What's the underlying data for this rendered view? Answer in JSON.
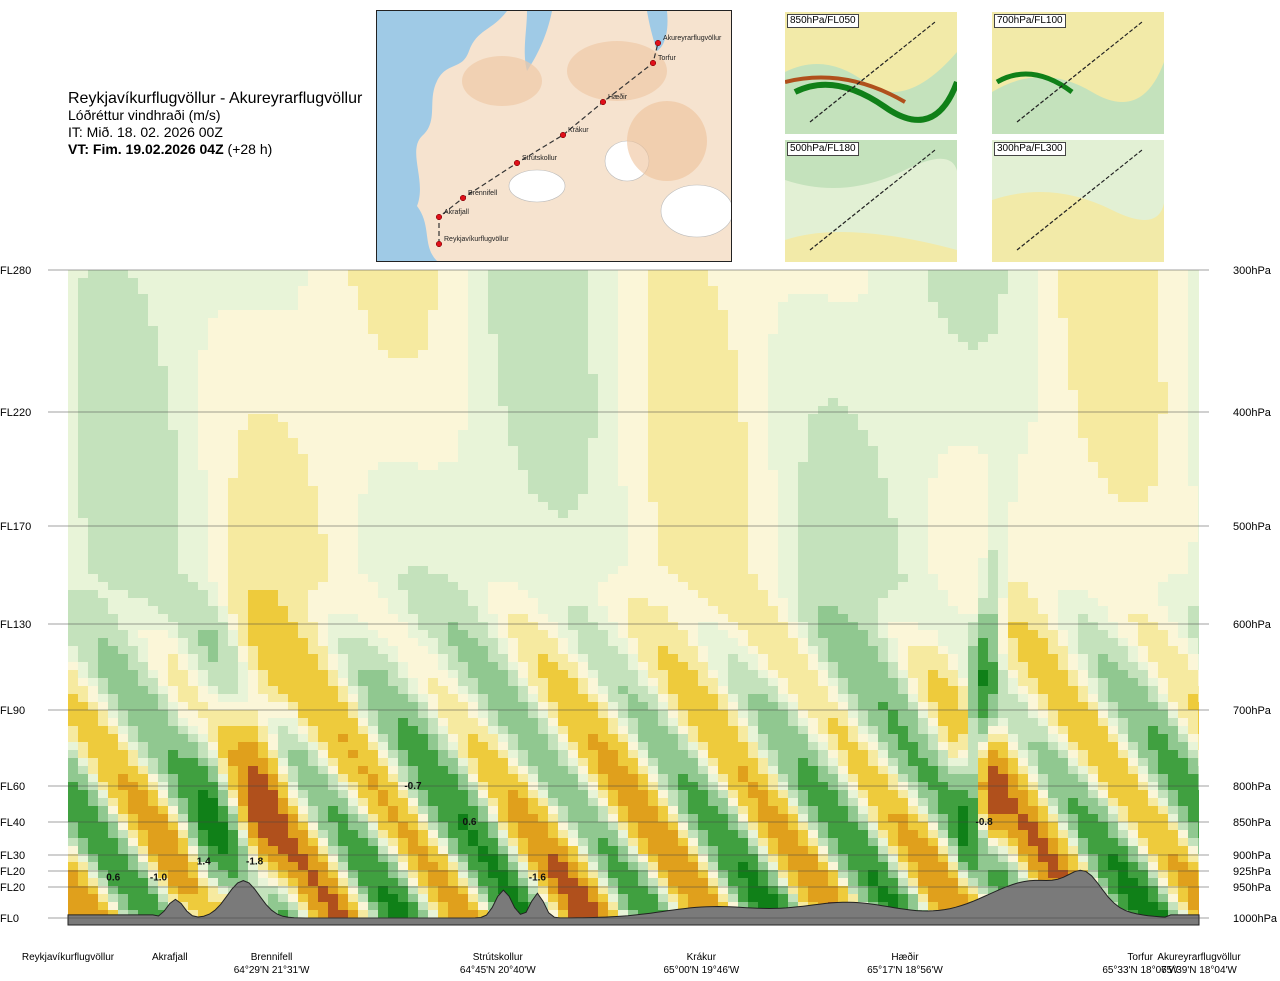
{
  "header": {
    "route": "Reykjavíkurflugvöllur - Akureyrarflugvöllur",
    "product": "Lóðréttur vindhraði (m/s)",
    "issue_time": "IT: Mið. 18. 02. 2026 00Z",
    "valid_prefix": "VT: Fim. 19.02.2026 04Z",
    "valid_suffix": " (+28 h)"
  },
  "map": {
    "waypoints": [
      {
        "name": "Akureyrarflugvöllur"
      },
      {
        "name": "Torfur"
      },
      {
        "name": "Hæðir"
      },
      {
        "name": "Krákur"
      },
      {
        "name": "Strútskollur"
      },
      {
        "name": "Brennifell"
      },
      {
        "name": "Akrafjall"
      },
      {
        "name": "Reykjavíkurflugvöllur"
      }
    ]
  },
  "insets": [
    {
      "label": "850hPa/FL050"
    },
    {
      "label": "700hPa/FL100"
    },
    {
      "label": "500hPa/FL180"
    },
    {
      "label": "300hPa/FL300"
    }
  ],
  "chart_data": {
    "type": "heatmap",
    "title": "Lóðréttur vindhraði (m/s)",
    "levels": [
      {
        "fl": "FL280",
        "hpa": "300hPa",
        "pressure": 300
      },
      {
        "fl": "FL220",
        "hpa": "400hPa",
        "pressure": 400
      },
      {
        "fl": "FL170",
        "hpa": "500hPa",
        "pressure": 500
      },
      {
        "fl": "FL130",
        "hpa": "600hPa",
        "pressure": 600
      },
      {
        "fl": "FL90",
        "hpa": "700hPa",
        "pressure": 700
      },
      {
        "fl": "FL60",
        "hpa": "800hPa",
        "pressure": 800
      },
      {
        "fl": "FL40",
        "hpa": "850hPa",
        "pressure": 850
      },
      {
        "fl": "FL30",
        "hpa": "900hPa",
        "pressure": 900
      },
      {
        "fl": "FL20",
        "hpa": "925hPa",
        "pressure": 925
      },
      {
        "fl": "FL20",
        "hpa": "950hPa",
        "pressure": 950
      },
      {
        "fl": "FL0",
        "hpa": "1000hPa",
        "pressure": 1000
      }
    ],
    "stations": [
      {
        "name": "Reykjavíkurflugvöllur",
        "coord": "",
        "dist": 0.0
      },
      {
        "name": "Akrafjall",
        "coord": "",
        "dist": 0.09
      },
      {
        "name": "Brennifell",
        "coord": "64°29'N 21°31'W",
        "dist": 0.18
      },
      {
        "name": "Strútskollur",
        "coord": "64°45'N 20°40'W",
        "dist": 0.38
      },
      {
        "name": "Krákur",
        "coord": "65°00'N 19°46'W",
        "dist": 0.56
      },
      {
        "name": "Hæðir",
        "coord": "65°17'N 18°56'W",
        "dist": 0.74
      },
      {
        "name": "Torfur",
        "coord": "65°33'N 18°07'W",
        "dist": 0.948
      },
      {
        "name": "Akureyrarflugvöllur",
        "coord": "65°39'N 18°04'W",
        "dist": 1.0
      }
    ],
    "value_labels": [
      {
        "text": "0.6",
        "dist": 0.04,
        "pressure": 935
      },
      {
        "text": "-1.0",
        "dist": 0.08,
        "pressure": 935
      },
      {
        "text": "1.4",
        "dist": 0.12,
        "pressure": 910
      },
      {
        "text": "-1.8",
        "dist": 0.165,
        "pressure": 910
      },
      {
        "text": "-0.7",
        "dist": 0.305,
        "pressure": 800
      },
      {
        "text": "0.6",
        "dist": 0.355,
        "pressure": 850
      },
      {
        "text": "-1.6",
        "dist": 0.415,
        "pressure": 935
      },
      {
        "text": "-0.8",
        "dist": 0.81,
        "pressure": 850
      }
    ],
    "w_classes": [
      {
        "min": -99,
        "max": -1.2,
        "color": "#7a1c0c"
      },
      {
        "min": -1.2,
        "max": -0.8,
        "color": "#b0501c"
      },
      {
        "min": -0.8,
        "max": -0.5,
        "color": "#e0a01c"
      },
      {
        "min": -0.5,
        "max": -0.25,
        "color": "#eecb3c"
      },
      {
        "min": -0.25,
        "max": -0.1,
        "color": "#f6eaa0"
      },
      {
        "min": -0.1,
        "max": 0.0,
        "color": "#fbf6d8"
      },
      {
        "min": 0.0,
        "max": 0.1,
        "color": "#e8f4d8"
      },
      {
        "min": 0.1,
        "max": 0.25,
        "color": "#c4e2bc"
      },
      {
        "min": 0.25,
        "max": 0.5,
        "color": "#90c890"
      },
      {
        "min": 0.5,
        "max": 0.8,
        "color": "#40a040"
      },
      {
        "min": 0.8,
        "max": 1.2,
        "color": "#108018"
      },
      {
        "min": 1.2,
        "max": 99,
        "color": "#7060e0"
      }
    ],
    "terrain_color": "#7a7a7a"
  }
}
